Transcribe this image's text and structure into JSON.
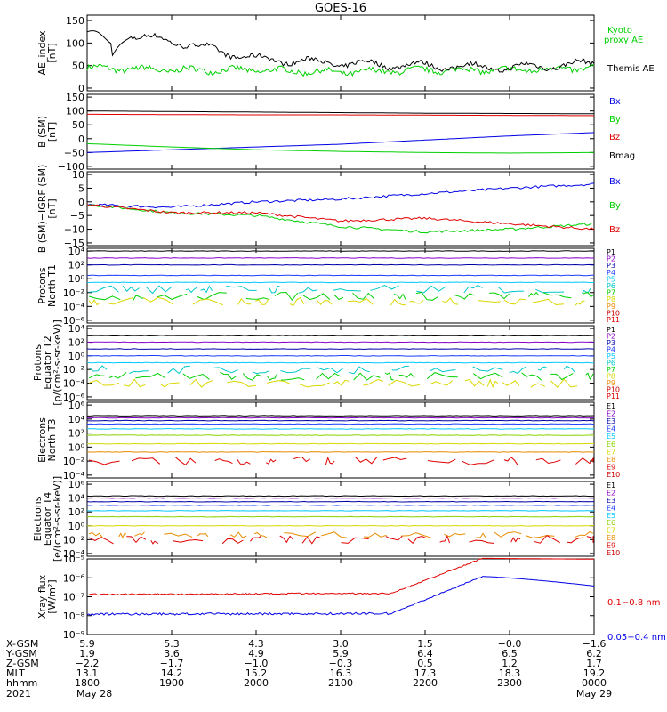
{
  "title": "GOES-16",
  "colors": {
    "black": "#000000",
    "blue": "#0000e6",
    "green": "#00d000",
    "red": "#e00000",
    "purple": "#8a00c8",
    "navy": "#0000aa",
    "dblue": "#1a3cff",
    "cyan": "#00c8ff",
    "teal": "#00c8c8",
    "yellow": "#d8d800",
    "orange": "#e88c00",
    "dred": "#c80000",
    "magenta": "#b400b4",
    "lime": "#8cd200"
  },
  "panels": [
    {
      "id": "ae",
      "ylabel": [
        "AE_index",
        "[nT]"
      ],
      "ticks": [
        "150",
        "100",
        "50",
        "0"
      ],
      "tickvals": [
        150,
        100,
        50,
        0
      ],
      "legend": [
        {
          "text": "Kyoto",
          "color": "#00d000"
        },
        {
          "text": "proxy AE",
          "color": "#00d000"
        },
        {
          "text": "Themis AE",
          "color": "#000000"
        }
      ]
    },
    {
      "id": "b",
      "ylabel": [
        "B (SM)",
        "[nT]"
      ],
      "ticks": [
        "150",
        "100",
        "50",
        "0",
        "−50",
        "−100"
      ],
      "tickvals": [
        150,
        100,
        50,
        0,
        -50,
        -100
      ],
      "legend": [
        {
          "text": "Bx",
          "color": "#0000e6"
        },
        {
          "text": "By",
          "color": "#00d000"
        },
        {
          "text": "Bz",
          "color": "#e00000"
        },
        {
          "text": "Bmag",
          "color": "#000000"
        }
      ]
    },
    {
      "id": "bi",
      "ylabel": [
        "B (SM)−IGRF (SM)",
        "[nT]"
      ],
      "ticks": [
        "10",
        "5",
        "0",
        "−5",
        "−10",
        "−15"
      ],
      "tickvals": [
        10,
        5,
        0,
        -5,
        -10,
        -15
      ],
      "legend": [
        {
          "text": "Bx",
          "color": "#0000e6"
        },
        {
          "text": "By",
          "color": "#00d000"
        },
        {
          "text": "Bz",
          "color": "#e00000"
        }
      ]
    },
    {
      "id": "pn",
      "ylabel": [
        "Protons",
        "North T1"
      ],
      "ticks": [
        "10⁴",
        "10²",
        "10⁰",
        "10⁻²",
        "10⁻⁴",
        "10⁻⁶"
      ],
      "tickvals": [
        4,
        2,
        0,
        -2,
        -4,
        -6
      ],
      "legend": [
        "P1",
        "P2",
        "P3",
        "P4",
        "P5",
        "P6",
        "P7",
        "P8",
        "P9",
        "P10",
        "P11"
      ]
    },
    {
      "id": "pe",
      "ylabel": [
        "Protons",
        "Equator T2",
        "[p/(cm²-s-sr-keV)]"
      ],
      "ticks": [
        "10⁴",
        "10²",
        "10⁰",
        "10⁻²",
        "10⁻⁴",
        "10⁻⁶"
      ],
      "tickvals": [
        4,
        2,
        0,
        -2,
        -4,
        -6
      ],
      "legend": [
        "P1",
        "P2",
        "P3",
        "P4",
        "P5",
        "P6",
        "P7",
        "P8",
        "P9",
        "P10",
        "P11"
      ]
    },
    {
      "id": "en",
      "ylabel": [
        "Electrons",
        "North T3"
      ],
      "ticks": [
        "10⁶",
        "10⁴",
        "10²",
        "10⁰",
        "10⁻²",
        "10⁻⁴"
      ],
      "tickvals": [
        6,
        4,
        2,
        0,
        -2,
        -4
      ],
      "legend": [
        "E1",
        "E2",
        "E3",
        "E4",
        "E5",
        "E6",
        "E7",
        "E8",
        "E9",
        "E10"
      ]
    },
    {
      "id": "ee",
      "ylabel": [
        "Electrons",
        "Equator T4",
        "[e/(cm²-s-sr-keV)]"
      ],
      "ticks": [
        "10⁶",
        "10⁴",
        "10²",
        "10⁰",
        "10⁻²",
        "10⁻⁴"
      ],
      "tickvals": [
        6,
        4,
        2,
        0,
        -2,
        -4
      ],
      "legend": [
        "E1",
        "E2",
        "E3",
        "E4",
        "E5",
        "E6",
        "E7",
        "E8",
        "E9",
        "E10"
      ]
    },
    {
      "id": "xr",
      "ylabel": [
        "Xray flux",
        "[W/m²]"
      ],
      "ticks": [
        "10⁻⁵",
        "10⁻⁶",
        "10⁻⁷",
        "10⁻⁸",
        "10⁻⁹"
      ],
      "tickvals": [
        -5,
        -6,
        -7,
        -8,
        -9
      ],
      "legend": [
        {
          "text": "0.1−0.8 nm",
          "color": "#e00000"
        },
        {
          "text": "0.05−0.4 nm",
          "color": "#0000e6"
        }
      ]
    }
  ],
  "bottom_axis": {
    "row_labels": [
      "X-GSM",
      "Y-GSM",
      "Z-GSM",
      "MLT",
      "hhmm",
      "2021"
    ],
    "columns": [
      {
        "x": "5.9",
        "y": "1.9",
        "z": "−2.2",
        "mlt": "13.1",
        "hhmm": "1800",
        "date": "May 28"
      },
      {
        "x": "5.3",
        "y": "3.6",
        "z": "−1.7",
        "mlt": "14.2",
        "hhmm": "1900",
        "date": ""
      },
      {
        "x": "4.3",
        "y": "4.9",
        "z": "−1.0",
        "mlt": "15.2",
        "hhmm": "2000",
        "date": ""
      },
      {
        "x": "3.0",
        "y": "5.9",
        "z": "−0.3",
        "mlt": "16.3",
        "hhmm": "2100",
        "date": ""
      },
      {
        "x": "1.5",
        "y": "6.4",
        "z": "0.5",
        "mlt": "17.3",
        "hhmm": "2200",
        "date": ""
      },
      {
        "x": "−0.0",
        "y": "6.5",
        "z": "1.2",
        "mlt": "18.3",
        "hhmm": "2300",
        "date": ""
      },
      {
        "x": "−1.6",
        "y": "6.2",
        "z": "1.7",
        "mlt": "19.2",
        "hhmm": "0000",
        "date": "May 29"
      }
    ]
  },
  "chart_data": [
    {
      "type": "line",
      "panel": "AE_index",
      "x": [
        "1800",
        "1900",
        "2000",
        "2100",
        "2200",
        "2300",
        "0000"
      ],
      "ylim": [
        0,
        150
      ],
      "series": [
        {
          "name": "Themis AE",
          "values": [
            125,
            105,
            65,
            55,
            50,
            45,
            55
          ]
        },
        {
          "name": "Kyoto proxy AE",
          "values": [
            45,
            40,
            40,
            35,
            40,
            40,
            45
          ]
        }
      ]
    },
    {
      "type": "line",
      "panel": "B (SM)",
      "x": [
        "1800",
        "1900",
        "2000",
        "2100",
        "2200",
        "2300",
        "0000"
      ],
      "ylim": [
        -100,
        150
      ],
      "series": [
        {
          "name": "Bmag",
          "values": [
            100,
            98,
            96,
            94,
            92,
            91,
            90
          ]
        },
        {
          "name": "Bz",
          "values": [
            88,
            87,
            86,
            86,
            85,
            84,
            83
          ]
        },
        {
          "name": "Bx",
          "values": [
            -50,
            -40,
            -30,
            -20,
            -5,
            10,
            22
          ]
        },
        {
          "name": "By",
          "values": [
            -18,
            -30,
            -40,
            -46,
            -50,
            -52,
            -50
          ]
        }
      ]
    },
    {
      "type": "line",
      "panel": "B (SM)−IGRF (SM)",
      "x": [
        "1800",
        "1900",
        "2000",
        "2100",
        "2200",
        "2300",
        "0000"
      ],
      "ylim": [
        -15,
        10
      ],
      "series": [
        {
          "name": "Bx",
          "values": [
            -1,
            -2,
            0,
            1,
            3,
            5,
            6.5
          ]
        },
        {
          "name": "By",
          "values": [
            -1,
            -4,
            -5,
            -9,
            -11,
            -10,
            -8
          ]
        },
        {
          "name": "Bz",
          "values": [
            -1,
            -4,
            -4,
            -7,
            -6,
            -8,
            -10
          ]
        }
      ]
    },
    {
      "type": "line",
      "panel": "Protons North T1",
      "ylim": [
        "1e-6",
        "1e4"
      ],
      "series": [
        {
          "name": "P1",
          "values": [
            10000.0
          ]
        },
        {
          "name": "P2",
          "values": [
            1000.0
          ]
        },
        {
          "name": "P3",
          "values": [
            100
          ]
        },
        {
          "name": "P4",
          "values": [
            3
          ]
        },
        {
          "name": "P5",
          "values": [
            0.3
          ]
        },
        {
          "name": "P6",
          "values": [
            0.03
          ]
        },
        {
          "name": "P7",
          "values": [
            0.003
          ]
        },
        {
          "name": "P8",
          "values": [
            0.0005
          ]
        }
      ]
    },
    {
      "type": "line",
      "panel": "Protons Equator T2",
      "ylim": [
        "1e-6",
        "1e4"
      ],
      "series": [
        {
          "name": "P1",
          "values": [
            1000.0
          ]
        },
        {
          "name": "P2",
          "values": [
            100
          ]
        },
        {
          "name": "P3",
          "values": [
            10
          ]
        },
        {
          "name": "P4",
          "values": [
            1
          ]
        },
        {
          "name": "P5",
          "values": [
            0.1
          ]
        },
        {
          "name": "P6",
          "values": [
            0.01
          ]
        },
        {
          "name": "P7",
          "values": [
            0.001
          ]
        },
        {
          "name": "P8",
          "values": [
            0.0001
          ]
        }
      ]
    },
    {
      "type": "line",
      "panel": "Electrons North T3",
      "ylim": [
        "1e-4",
        "1e6"
      ],
      "series": [
        {
          "name": "E1",
          "values": [
            30000
          ]
        },
        {
          "name": "E2",
          "values": [
            15000
          ]
        },
        {
          "name": "E3",
          "values": [
            6000
          ]
        },
        {
          "name": "E4",
          "values": [
            2000
          ]
        },
        {
          "name": "E5",
          "values": [
            400
          ]
        },
        {
          "name": "E6",
          "values": [
            50
          ]
        },
        {
          "name": "E7",
          "values": [
            3
          ]
        },
        {
          "name": "E8",
          "values": [
            0.2
          ]
        },
        {
          "name": "E9",
          "values": [
            0.01
          ]
        }
      ]
    },
    {
      "type": "line",
      "panel": "Electrons Equator T4",
      "ylim": [
        "1e-4",
        "1e6"
      ],
      "series": [
        {
          "name": "E1",
          "values": [
            20000
          ]
        },
        {
          "name": "E2",
          "values": [
            10000
          ]
        },
        {
          "name": "E3",
          "values": [
            3000
          ]
        },
        {
          "name": "E4",
          "values": [
            800
          ]
        },
        {
          "name": "E5",
          "values": [
            150
          ]
        },
        {
          "name": "E6",
          "values": [
            20
          ]
        },
        {
          "name": "E7",
          "values": [
            1
          ]
        },
        {
          "name": "E8",
          "values": [
            0.05
          ]
        },
        {
          "name": "E9",
          "values": [
            0.01
          ]
        }
      ]
    },
    {
      "type": "line",
      "panel": "Xray flux",
      "x": [
        "1800",
        "1900",
        "2000",
        "2100",
        "2200",
        "2300",
        "0000"
      ],
      "ylim": [
        "1e-9",
        "1e-5"
      ],
      "series": [
        {
          "name": "0.1−0.8 nm",
          "values": [
            1.3e-07,
            1.4e-07,
            1.6e-07,
            1.7e-07,
            2.2e-07,
            9.5e-06,
            6e-06
          ]
        },
        {
          "name": "0.05−0.4 nm",
          "values": [
            1.2e-08,
            1.1e-08,
            1.3e-08,
            1.3e-08,
            1.5e-08,
            1e-06,
            4e-07
          ]
        }
      ]
    }
  ]
}
